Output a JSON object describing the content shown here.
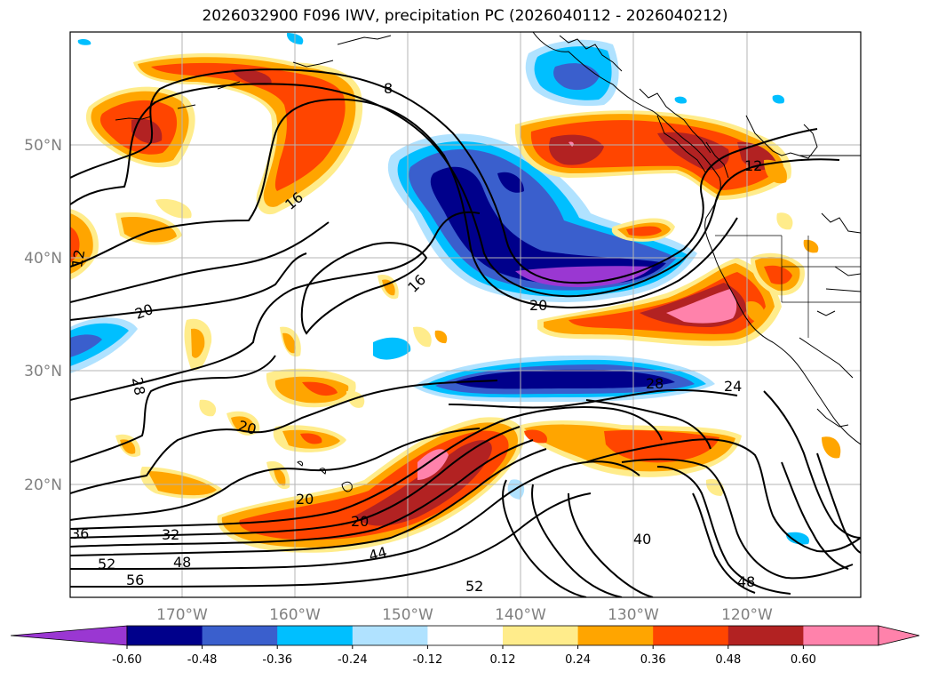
{
  "title": "2026032900 F096 IWV, precipitation PC (2026040112 - 2026040212)",
  "latitude_labels": [
    "20°N",
    "30°N",
    "40°N",
    "50°N"
  ],
  "longitude_labels": [
    "170°W",
    "160°W",
    "150°W",
    "140°W",
    "130°W",
    "120°W"
  ],
  "contour_labels": [
    "8",
    "12",
    "12",
    "16",
    "16",
    "20",
    "20",
    "20",
    "20",
    "20",
    "24",
    "28",
    "28",
    "32",
    "36",
    "40",
    "44",
    "48",
    "48",
    "52",
    "52",
    "56"
  ],
  "colorbar": {
    "ticks": [
      "-0.60",
      "-0.48",
      "-0.36",
      "-0.24",
      "-0.12",
      "0.12",
      "0.24",
      "0.36",
      "0.48",
      "0.60"
    ],
    "colors": [
      "#9a37d2",
      "#00008b",
      "#3a5fcd",
      "#00bfff",
      "#b0e2ff",
      "#ffffff",
      "#ffec8b",
      "#ffa500",
      "#ff4500",
      "#b22222",
      "#ff82ab",
      "#ff82ab"
    ]
  }
}
